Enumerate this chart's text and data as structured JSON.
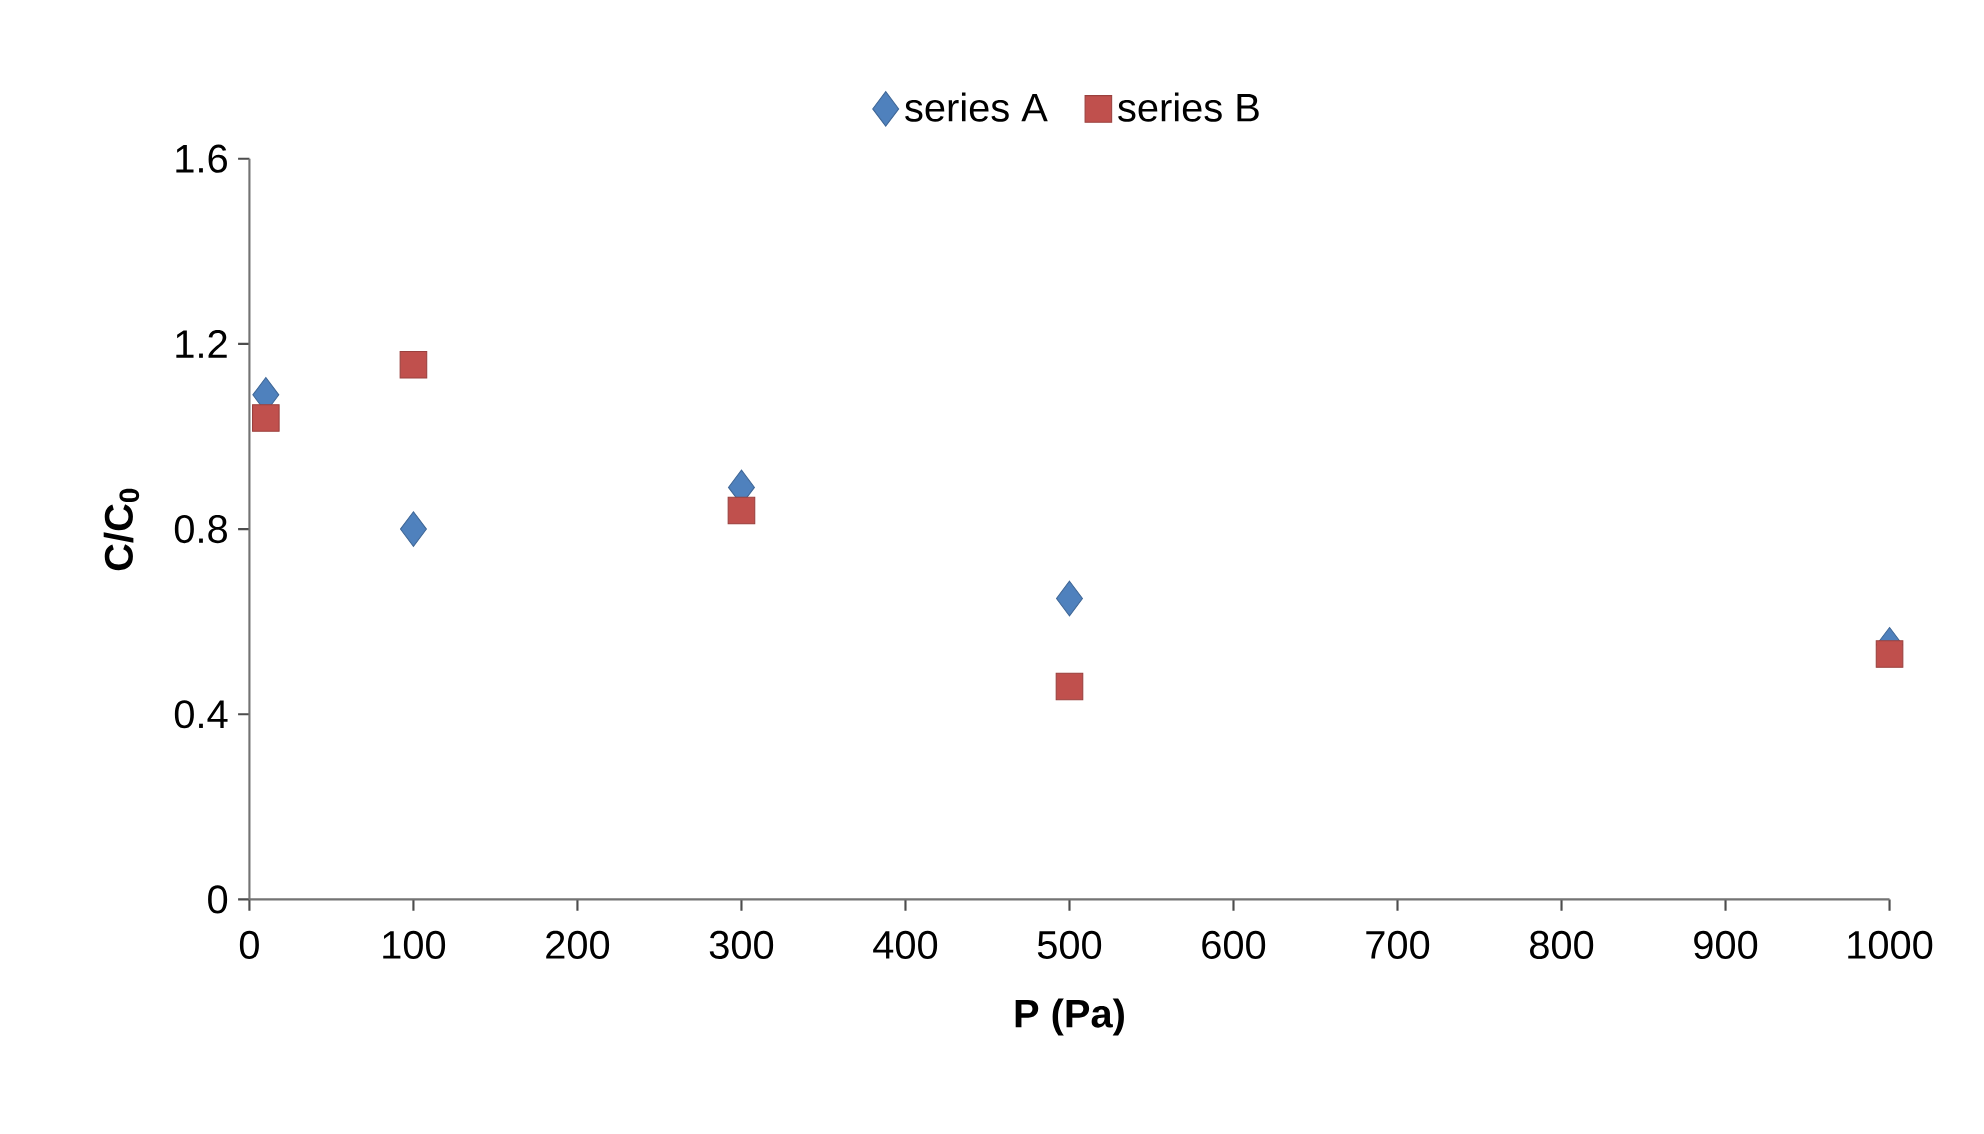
{
  "chart_data": {
    "type": "scatter",
    "xlabel": "P (Pa)",
    "ylabel": "C/C$_{0}$",
    "xlim": [
      0,
      1000
    ],
    "xticks": [
      0,
      100,
      200,
      300,
      400,
      500,
      600,
      700,
      800,
      900,
      1000
    ],
    "ylim": [
      0,
      1.6
    ],
    "yticks": [
      0,
      0.4,
      0.8,
      1.2,
      1.6
    ],
    "grid": false,
    "legend": "top",
    "series": [
      {
        "name": "series A",
        "color": "#4f81bd",
        "marker": "diamond",
        "x": [
          10,
          100,
          300,
          500,
          1000
        ],
        "values": [
          1.09,
          0.8,
          0.89,
          0.65,
          0.55
        ]
      },
      {
        "name": "series B",
        "color": "#c0504d",
        "marker": "square",
        "x": [
          10,
          100,
          300,
          500,
          1000
        ],
        "values": [
          1.04,
          1.155,
          0.84,
          0.46,
          0.53
        ]
      }
    ]
  }
}
